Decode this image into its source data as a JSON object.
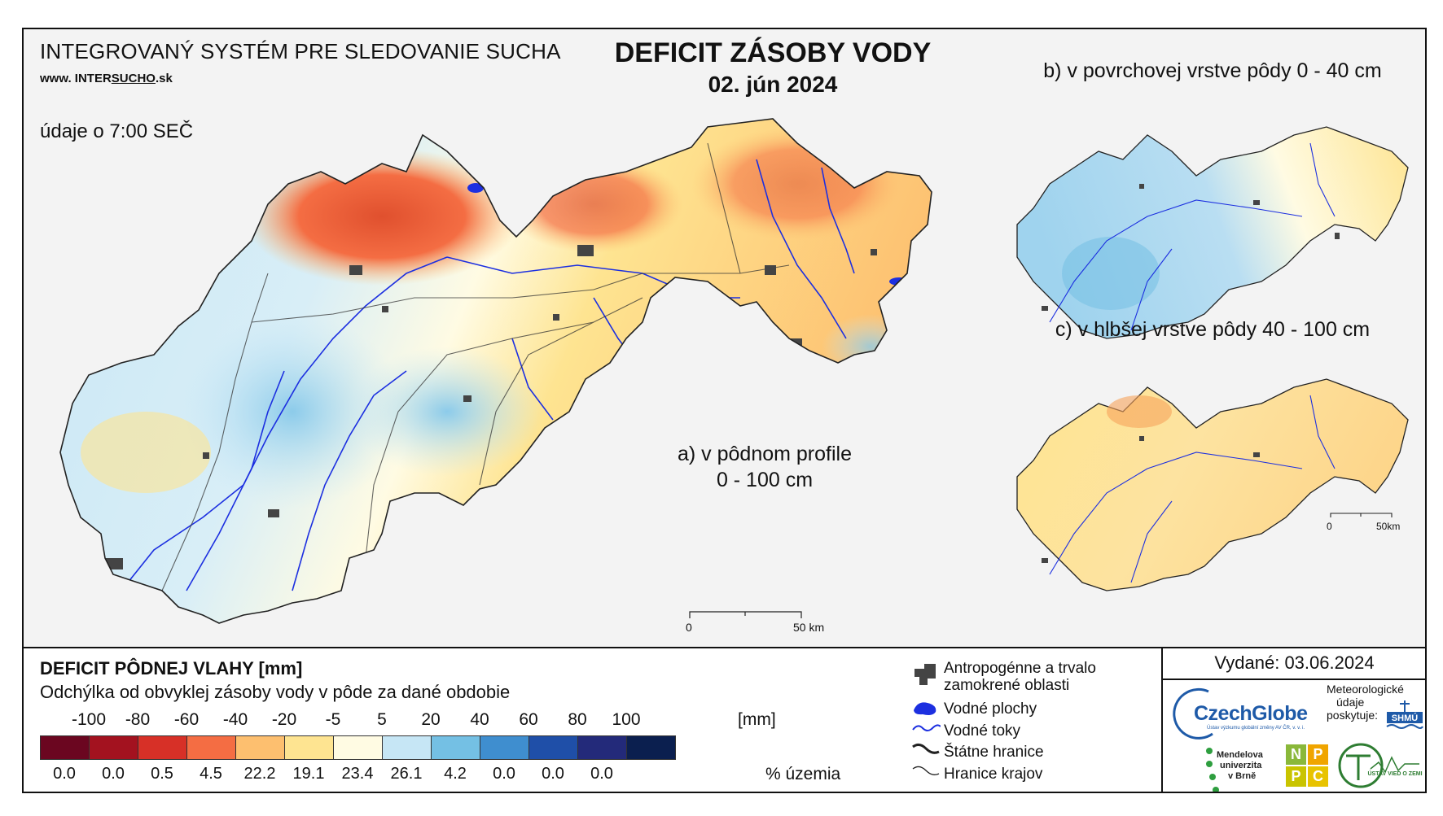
{
  "header": {
    "system_title": "INTEGROVANÝ SYSTÉM PRE SLEDOVANIE SUCHA",
    "url_prefix": "www. INTER",
    "url_underlined": "SUCHO",
    "url_suffix": ".sk",
    "data_time": "údaje o 7:00 SEČ",
    "main_title": "DEFICIT ZÁSOBY VODY",
    "date": "02. jún 2024"
  },
  "maps": {
    "a_label_line1": "a) v pôdnom profile",
    "a_label_line2": "0 - 100 cm",
    "b_label": "b) v povrchovej vrstve pôdy 0 - 40 cm",
    "c_label": "c) v hlbšej vrstve pôdy 40 - 100 cm",
    "scale_main_zero": "0",
    "scale_main_end": "50 km",
    "scale_small_zero": "0",
    "scale_small_end": "50km"
  },
  "legend": {
    "title": "DEFICIT PÔDNEJ VLAHY [mm]",
    "subtitle": "Odchýlka od obvyklej zásoby vody v pôde za dané obdobie",
    "unit": "[mm]",
    "pct_unit": "% územia",
    "ticks": [
      "-100",
      "-80",
      "-60",
      "-40",
      "-20",
      "-5",
      "5",
      "20",
      "40",
      "60",
      "80",
      "100"
    ],
    "classes": [
      {
        "color": "#6b0620",
        "percent": "0.0"
      },
      {
        "color": "#a3121f",
        "percent": "0.0"
      },
      {
        "color": "#d73027",
        "percent": "0.5"
      },
      {
        "color": "#f46d43",
        "percent": "4.5"
      },
      {
        "color": "#fdbf6f",
        "percent": "22.2"
      },
      {
        "color": "#fee491",
        "percent": "19.1"
      },
      {
        "color": "#fffbe3",
        "percent": "23.4"
      },
      {
        "color": "#c6e6f5",
        "percent": "26.1"
      },
      {
        "color": "#74c0e4",
        "percent": "4.2"
      },
      {
        "color": "#3f8ecf",
        "percent": "0.0"
      },
      {
        "color": "#1f4fa8",
        "percent": "0.0"
      },
      {
        "color": "#232a7a",
        "percent": "0.0"
      },
      {
        "color": "#0b1f4f",
        "percent": ""
      }
    ],
    "symbols": [
      {
        "icon": "urban-area-icon",
        "label": "Antropogénne a trvalo zamokrené oblasti"
      },
      {
        "icon": "water-body-icon",
        "label": "Vodné plochy"
      },
      {
        "icon": "river-icon",
        "label": "Vodné toky"
      },
      {
        "icon": "state-border-icon",
        "label": "Štátne hranice"
      },
      {
        "icon": "region-border-icon",
        "label": "Hranice krajov"
      }
    ]
  },
  "footer": {
    "issued": "Vydané: 03.06.2024",
    "czechglobe": "CzechGlobe",
    "czechglobe_sub": "Ústav výzkumu globální změny AV ČR, v. v. i.",
    "meteo_line1": "Meteorologické",
    "meteo_line2": "údaje",
    "meteo_line3": "poskytuje:",
    "shmu": "SHMÚ",
    "mendel_line1": "Mendelova",
    "mendel_line2": "univerzita",
    "mendel_line3": "v Brně",
    "nppc": [
      "N",
      "P",
      "P",
      "C"
    ],
    "uvz": "ÚSTAV VIED O ZEMI"
  },
  "colors": {
    "river": "#1c2fe0",
    "urban": "#444444",
    "border": "#222222",
    "background": "#f3f3f3"
  }
}
